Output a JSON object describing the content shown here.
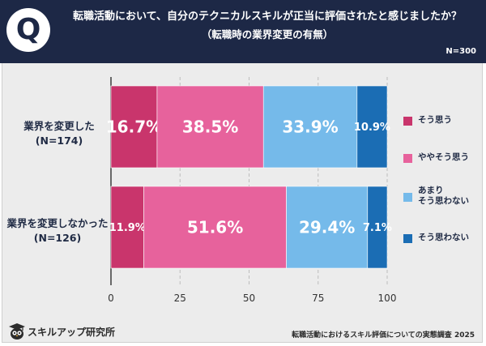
{
  "header": {
    "q_mark": "Q",
    "title": "転職活動において、自分のテクニカルスキルが正当に評価されたと感じましたか？",
    "subtitle": "（転職時の業界変更の有無）",
    "n_total": "N=300"
  },
  "chart_data": {
    "type": "bar",
    "orientation": "horizontal",
    "stacked": true,
    "x_ticks": [
      "0",
      "25",
      "50",
      "75",
      "100"
    ],
    "xlim": [
      0,
      100
    ],
    "categories": [
      {
        "label": "業界を変更した",
        "n": "(N=174)"
      },
      {
        "label": "業界を変更しなかった",
        "n": "(N=126)"
      }
    ],
    "series": [
      {
        "name": "そう思う",
        "color": "#c9356c",
        "values": [
          16.7,
          11.9
        ],
        "labels": [
          "16.7%",
          "11.9%"
        ]
      },
      {
        "name": "ややそう思う",
        "color": "#e7629c",
        "values": [
          38.5,
          51.6
        ],
        "labels": [
          "38.5%",
          "51.6%"
        ]
      },
      {
        "name": "あまり そう思わない",
        "color": "#75baea",
        "values": [
          33.9,
          29.4
        ],
        "labels": [
          "33.9%",
          "29.4%"
        ]
      },
      {
        "name": "そう思わない",
        "color": "#1b6db4",
        "values": [
          10.9,
          7.1
        ],
        "labels": [
          "10.9%",
          "7.1%"
        ]
      }
    ]
  },
  "legend": [
    {
      "line1": "そう思う",
      "line2": "",
      "color": "#c9356c"
    },
    {
      "line1": "ややそう思う",
      "line2": "",
      "color": "#e7629c"
    },
    {
      "line1": "あまり",
      "line2": "そう思わない",
      "color": "#75baea"
    },
    {
      "line1": "そう思わない",
      "line2": "",
      "color": "#1b6db4"
    }
  ],
  "footer": {
    "brand": "スキルアップ研究所",
    "source": "転職活動におけるスキル評価についての実態調査 2025"
  }
}
